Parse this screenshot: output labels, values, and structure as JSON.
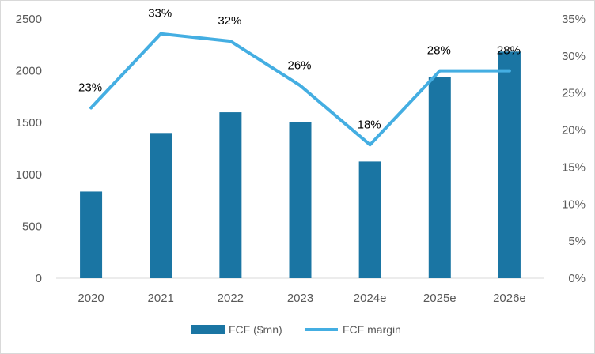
{
  "chart_data": {
    "type": "bar",
    "categories": [
      "2020",
      "2021",
      "2022",
      "2023",
      "2024e",
      "2025e",
      "2026e"
    ],
    "series": [
      {
        "name": "FCF ($mn)",
        "type": "bar",
        "axis": "left",
        "color": "#1a75a3",
        "values": [
          835,
          1400,
          1600,
          1505,
          1125,
          1940,
          2185
        ]
      },
      {
        "name": "FCF margin",
        "type": "line",
        "axis": "right",
        "color": "#44aee2",
        "values": [
          0.23,
          0.33,
          0.32,
          0.26,
          0.18,
          0.28,
          0.28
        ],
        "data_labels": [
          "23%",
          "33%",
          "32%",
          "26%",
          "18%",
          "28%",
          "28%"
        ]
      }
    ],
    "y_left": {
      "range": [
        0,
        2500
      ],
      "ticks": [
        0,
        500,
        1000,
        1500,
        2000,
        2500
      ],
      "tick_labels": [
        "0",
        "500",
        "1000",
        "1500",
        "2000",
        "2500"
      ]
    },
    "y_right": {
      "range": [
        0,
        0.35
      ],
      "ticks": [
        0,
        0.05,
        0.1,
        0.15,
        0.2,
        0.25,
        0.3,
        0.35
      ],
      "tick_labels": [
        "0%",
        "5%",
        "10%",
        "15%",
        "20%",
        "25%",
        "30%",
        "35%"
      ]
    },
    "title": "",
    "xlabel": "",
    "ylabel": "",
    "grid": false,
    "legend": {
      "position": "bottom",
      "entries": [
        "FCF ($mn)",
        "FCF margin"
      ]
    }
  }
}
